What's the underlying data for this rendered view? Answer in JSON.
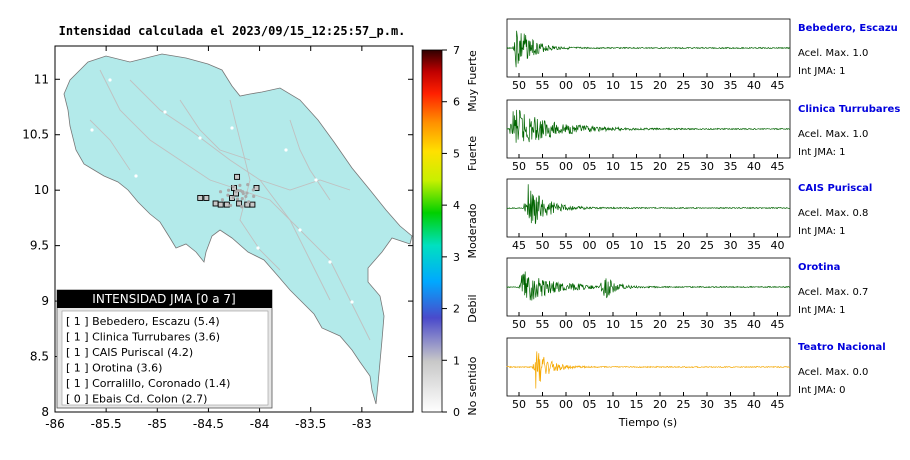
{
  "map": {
    "title": "Intensidad calculada el 2023/09/15_12:25:57_p.m.",
    "x_ticks": [
      "-86",
      "-85.5",
      "-85",
      "-84.5",
      "-84",
      "-83.5",
      "-83"
    ],
    "y_ticks": [
      "11",
      "10.5",
      "10",
      "9.5",
      "9",
      "8.5",
      "8"
    ],
    "land_color": "#b3eaea",
    "stations": [
      {
        "lon": -84.58,
        "lat": 9.93
      },
      {
        "lon": -84.52,
        "lat": 9.93
      },
      {
        "lon": -84.43,
        "lat": 9.88
      },
      {
        "lon": -84.38,
        "lat": 9.87
      },
      {
        "lon": -84.32,
        "lat": 9.87
      },
      {
        "lon": -84.27,
        "lat": 9.93
      },
      {
        "lon": -84.23,
        "lat": 9.97
      },
      {
        "lon": -84.2,
        "lat": 9.88
      },
      {
        "lon": -84.12,
        "lat": 9.87
      },
      {
        "lon": -84.07,
        "lat": 9.87
      },
      {
        "lon": -84.22,
        "lat": 10.12
      },
      {
        "lon": -84.03,
        "lat": 10.02
      },
      {
        "lon": -84.25,
        "lat": 10.02
      }
    ]
  },
  "legend": {
    "title": "INTENSIDAD JMA [0 a 7]",
    "entries": [
      "[ 1 ]  Bebedero, Escazu (5.4)",
      "[ 1 ]  Clinica Turrubares (3.6)",
      "[ 1 ]  CAIS Puriscal (4.2)",
      "[ 1 ]  Orotina (3.6)",
      "[ 1 ]  Corralillo, Coronado (1.4)",
      "[ 0 ]  Ebais Cd. Colon (2.7)"
    ]
  },
  "colorbar": {
    "ticks": [
      "0",
      "1",
      "2",
      "3",
      "4",
      "5",
      "6",
      "7"
    ],
    "labels": [
      "No sentido",
      "Debil",
      "Moderado",
      "Fuerte",
      "Muy Fuerte"
    ]
  },
  "waveforms": [
    {
      "station": "Bebedero, Escazu",
      "accel": "Acel. Max. 1.0",
      "int": "Int JMA: 1",
      "color": "#006400",
      "ticks": [
        "50",
        "55",
        "00",
        "05",
        "10",
        "15",
        "20",
        "25",
        "30",
        "35",
        "40",
        "45"
      ],
      "events": [
        {
          "t": 0.03,
          "amp": 1.0,
          "decay": 0.05
        }
      ]
    },
    {
      "station": "Clinica Turrubares",
      "accel": "Acel. Max. 1.0",
      "int": "Int JMA: 1",
      "color": "#006400",
      "ticks": [
        "50",
        "55",
        "00",
        "05",
        "10",
        "15",
        "20",
        "25",
        "30",
        "35",
        "40",
        "45"
      ],
      "events": [
        {
          "t": 0.02,
          "amp": 0.85,
          "decay": 0.12
        }
      ]
    },
    {
      "station": "CAIS Puriscal",
      "accel": "Acel. Max. 0.8",
      "int": "Int JMA: 1",
      "color": "#006400",
      "ticks": [
        "45",
        "50",
        "55",
        "00",
        "05",
        "10",
        "15",
        "20",
        "25",
        "30",
        "35",
        "40"
      ],
      "events": [
        {
          "t": 0.07,
          "amp": 0.95,
          "decay": 0.06
        }
      ]
    },
    {
      "station": "Orotina",
      "accel": "Acel. Max. 0.7",
      "int": "Int JMA: 1",
      "color": "#006400",
      "ticks": [
        "50",
        "55",
        "00",
        "05",
        "10",
        "15",
        "20",
        "25",
        "30",
        "35",
        "40",
        "45"
      ],
      "events": [
        {
          "t": 0.05,
          "amp": 0.7,
          "decay": 0.1
        },
        {
          "t": 0.34,
          "amp": 0.55,
          "decay": 0.03
        }
      ]
    },
    {
      "station": "Teatro Nacional",
      "accel": "Acel. Max. 0.0",
      "int": "Int JMA: 0",
      "color": "#f5a800",
      "ticks": [
        "50",
        "55",
        "00",
        "05",
        "10",
        "15",
        "20",
        "25",
        "30",
        "35",
        "40",
        "45"
      ],
      "events": [
        {
          "t": 0.1,
          "amp": 0.9,
          "decay": 0.04
        }
      ]
    }
  ],
  "xaxis_label": "Tiempo (s)"
}
